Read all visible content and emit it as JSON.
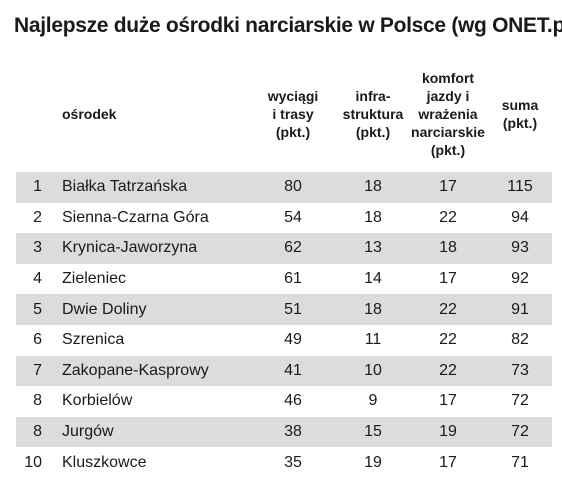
{
  "title": "Najlepsze duże ośrodki narciarskie w Polsce (wg ONET.pl)",
  "headers": {
    "name": "ośrodek",
    "lifts": [
      "wyciągi",
      "i trasy",
      "(pkt.)"
    ],
    "infra": [
      "infra-",
      "struktura",
      "(pkt.)"
    ],
    "comfort": [
      "komfort",
      "jazdy i",
      "wrażenia",
      "narciarskie",
      "(pkt.)"
    ],
    "sum": [
      "suma",
      "(pkt.)"
    ]
  },
  "rows": [
    {
      "rank": "1",
      "name": "Białka Tatrzańska",
      "lifts": "80",
      "infra": "18",
      "comfort": "17",
      "sum": "115"
    },
    {
      "rank": "2",
      "name": "Sienna-Czarna Góra",
      "lifts": "54",
      "infra": "18",
      "comfort": "22",
      "sum": "94"
    },
    {
      "rank": "3",
      "name": "Krynica-Jaworzyna",
      "lifts": "62",
      "infra": "13",
      "comfort": "18",
      "sum": "93"
    },
    {
      "rank": "4",
      "name": "Zieleniec",
      "lifts": "61",
      "infra": "14",
      "comfort": "17",
      "sum": "92"
    },
    {
      "rank": "5",
      "name": "Dwie Doliny",
      "lifts": "51",
      "infra": "18",
      "comfort": "22",
      "sum": "91"
    },
    {
      "rank": "6",
      "name": "Szrenica",
      "lifts": "49",
      "infra": "11",
      "comfort": "22",
      "sum": "82"
    },
    {
      "rank": "7",
      "name": "Zakopane-Kasprowy",
      "lifts": "41",
      "infra": "10",
      "comfort": "22",
      "sum": "73"
    },
    {
      "rank": "8",
      "name": "Korbielów",
      "lifts": "46",
      "infra": "9",
      "comfort": "17",
      "sum": "72"
    },
    {
      "rank": "8",
      "name": "Jurgów",
      "lifts": "38",
      "infra": "15",
      "comfort": "19",
      "sum": "72"
    },
    {
      "rank": "10",
      "name": "Kluszkowce",
      "lifts": "35",
      "infra": "19",
      "comfort": "17",
      "sum": "71"
    }
  ],
  "colors": {
    "stripe": "#dcdcdc",
    "text": "#1a1a1a"
  }
}
